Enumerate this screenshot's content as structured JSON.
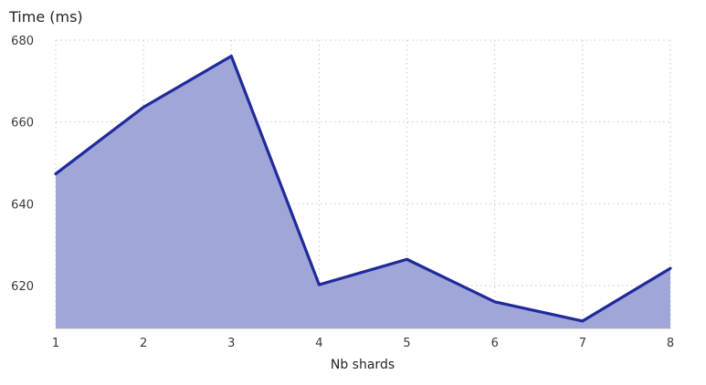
{
  "chart_data": {
    "type": "area",
    "title": "",
    "xlabel": "Nb shards",
    "ylabel": "Time (ms)",
    "x": [
      1,
      2,
      3,
      4,
      5,
      6,
      7,
      8
    ],
    "series": [
      {
        "values": [
          647.3,
          663.6,
          676.1,
          620.2,
          626.4,
          616.0,
          611.3,
          624.2
        ]
      }
    ],
    "yticks": [
      620,
      640,
      660,
      680
    ],
    "ylim": [
      609.5,
      680
    ],
    "xlim": [
      1,
      8
    ],
    "grid": true,
    "legend": "none",
    "colors": {
      "line": "#1f2a9b",
      "fill": "#a0a6d8",
      "grid": "#c8c8c8",
      "text": "#252423"
    }
  }
}
